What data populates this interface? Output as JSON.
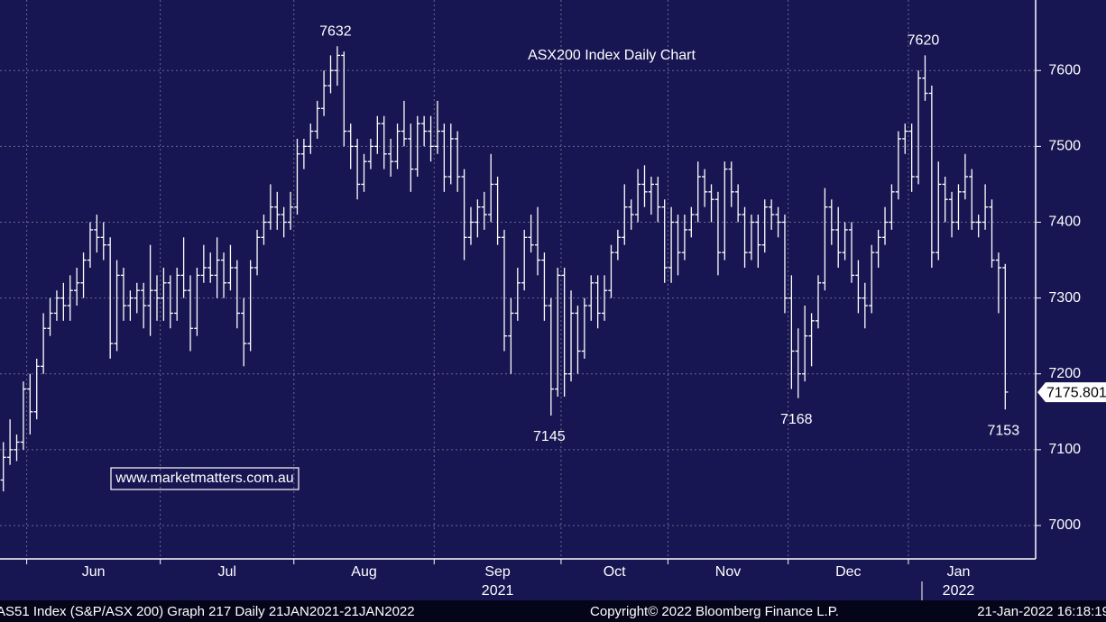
{
  "chart_data": {
    "type": "ohlc",
    "title": "ASX200 Index Daily Chart",
    "watermark": "www.marketmatters.com.au",
    "color": "#ffffff",
    "title_color": "#8fe07a",
    "grid": true,
    "ylim": [
      6956,
      7693
    ],
    "yticks": [
      7000,
      7100,
      7200,
      7300,
      7400,
      7500,
      7600
    ],
    "xlim": [
      0,
      151
    ],
    "xticks": [
      {
        "value": 4,
        "label": "Jun"
      },
      {
        "value": 24,
        "label": "Jul"
      },
      {
        "value": 44,
        "label": "Aug"
      },
      {
        "value": 65,
        "label": "Sep",
        "year": "2021"
      },
      {
        "value": 84,
        "label": "Oct"
      },
      {
        "value": 100,
        "label": "Nov"
      },
      {
        "value": 118,
        "label": "Dec"
      },
      {
        "value": 136,
        "label": "Jan",
        "year": "2022"
      }
    ],
    "last_price": 7175.801,
    "annotations": [
      {
        "label": 7632,
        "bar": 50
      },
      {
        "label": 7145,
        "bar": 82
      },
      {
        "label": 7168,
        "bar": 119
      },
      {
        "label": 7620,
        "bar": 138
      },
      {
        "label": 7153,
        "bar": 150
      }
    ],
    "footer": [
      "AS51 Index (S&P/ASX 200) Graph 217  Daily 21JAN2021-21JAN2022",
      "Copyright© 2022 Bloomberg Finance L.P.",
      "21-Jan-2022 16:18:19"
    ],
    "ohlc": [
      [
        7060,
        7110,
        7045,
        7090
      ],
      [
        7090,
        7140,
        7080,
        7100
      ],
      [
        7100,
        7120,
        7085,
        7110
      ],
      [
        7110,
        7190,
        7100,
        7180
      ],
      [
        7180,
        7200,
        7120,
        7150
      ],
      [
        7150,
        7220,
        7140,
        7210
      ],
      [
        7210,
        7280,
        7200,
        7260
      ],
      [
        7260,
        7300,
        7250,
        7280
      ],
      [
        7280,
        7310,
        7270,
        7300
      ],
      [
        7300,
        7320,
        7270,
        7290
      ],
      [
        7290,
        7330,
        7270,
        7310
      ],
      [
        7310,
        7340,
        7290,
        7320
      ],
      [
        7320,
        7360,
        7300,
        7350
      ],
      [
        7350,
        7400,
        7340,
        7390
      ],
      [
        7390,
        7410,
        7360,
        7380
      ],
      [
        7380,
        7400,
        7350,
        7370
      ],
      [
        7370,
        7380,
        7220,
        7240
      ],
      [
        7240,
        7350,
        7230,
        7330
      ],
      [
        7330,
        7340,
        7270,
        7290
      ],
      [
        7290,
        7310,
        7270,
        7300
      ],
      [
        7300,
        7320,
        7280,
        7310
      ],
      [
        7310,
        7320,
        7260,
        7290
      ],
      [
        7290,
        7370,
        7250,
        7310
      ],
      [
        7310,
        7330,
        7270,
        7300
      ],
      [
        7300,
        7340,
        7270,
        7320
      ],
      [
        7320,
        7330,
        7260,
        7280
      ],
      [
        7280,
        7340,
        7270,
        7330
      ],
      [
        7330,
        7380,
        7300,
        7310
      ],
      [
        7310,
        7330,
        7230,
        7260
      ],
      [
        7260,
        7340,
        7250,
        7330
      ],
      [
        7330,
        7370,
        7320,
        7340
      ],
      [
        7340,
        7360,
        7320,
        7330
      ],
      [
        7330,
        7380,
        7300,
        7350
      ],
      [
        7350,
        7360,
        7300,
        7320
      ],
      [
        7320,
        7370,
        7310,
        7340
      ],
      [
        7340,
        7350,
        7260,
        7280
      ],
      [
        7280,
        7300,
        7210,
        7240
      ],
      [
        7240,
        7350,
        7230,
        7340
      ],
      [
        7340,
        7390,
        7330,
        7380
      ],
      [
        7380,
        7410,
        7370,
        7400
      ],
      [
        7400,
        7450,
        7390,
        7420
      ],
      [
        7420,
        7440,
        7390,
        7410
      ],
      [
        7410,
        7420,
        7380,
        7400
      ],
      [
        7400,
        7440,
        7390,
        7420
      ],
      [
        7420,
        7510,
        7410,
        7490
      ],
      [
        7490,
        7510,
        7470,
        7500
      ],
      [
        7500,
        7530,
        7490,
        7520
      ],
      [
        7520,
        7560,
        7510,
        7550
      ],
      [
        7550,
        7600,
        7540,
        7580
      ],
      [
        7580,
        7620,
        7570,
        7600
      ],
      [
        7600,
        7632,
        7580,
        7620
      ],
      [
        7620,
        7625,
        7500,
        7520
      ],
      [
        7520,
        7530,
        7470,
        7500
      ],
      [
        7500,
        7510,
        7430,
        7450
      ],
      [
        7450,
        7490,
        7440,
        7480
      ],
      [
        7480,
        7510,
        7470,
        7500
      ],
      [
        7500,
        7540,
        7490,
        7530
      ],
      [
        7530,
        7540,
        7470,
        7490
      ],
      [
        7490,
        7510,
        7460,
        7480
      ],
      [
        7480,
        7530,
        7470,
        7520
      ],
      [
        7520,
        7560,
        7500,
        7510
      ],
      [
        7510,
        7530,
        7440,
        7470
      ],
      [
        7470,
        7540,
        7460,
        7530
      ],
      [
        7530,
        7540,
        7500,
        7520
      ],
      [
        7520,
        7540,
        7480,
        7500
      ],
      [
        7500,
        7560,
        7490,
        7520
      ],
      [
        7520,
        7530,
        7440,
        7460
      ],
      [
        7460,
        7530,
        7450,
        7510
      ],
      [
        7510,
        7520,
        7440,
        7460
      ],
      [
        7460,
        7470,
        7350,
        7380
      ],
      [
        7380,
        7420,
        7370,
        7400
      ],
      [
        7400,
        7430,
        7380,
        7420
      ],
      [
        7420,
        7440,
        7390,
        7410
      ],
      [
        7410,
        7490,
        7400,
        7450
      ],
      [
        7450,
        7460,
        7370,
        7380
      ],
      [
        7380,
        7390,
        7230,
        7250
      ],
      [
        7250,
        7300,
        7200,
        7280
      ],
      [
        7280,
        7340,
        7270,
        7320
      ],
      [
        7320,
        7390,
        7310,
        7380
      ],
      [
        7380,
        7410,
        7360,
        7370
      ],
      [
        7370,
        7420,
        7330,
        7350
      ],
      [
        7350,
        7360,
        7270,
        7290
      ],
      [
        7290,
        7300,
        7145,
        7180
      ],
      [
        7180,
        7340,
        7170,
        7330
      ],
      [
        7330,
        7340,
        7170,
        7200
      ],
      [
        7200,
        7310,
        7190,
        7280
      ],
      [
        7280,
        7290,
        7200,
        7230
      ],
      [
        7230,
        7300,
        7220,
        7290
      ],
      [
        7290,
        7330,
        7270,
        7320
      ],
      [
        7320,
        7330,
        7260,
        7280
      ],
      [
        7280,
        7330,
        7270,
        7310
      ],
      [
        7310,
        7370,
        7300,
        7360
      ],
      [
        7360,
        7390,
        7350,
        7380
      ],
      [
        7380,
        7450,
        7370,
        7420
      ],
      [
        7420,
        7430,
        7390,
        7410
      ],
      [
        7410,
        7470,
        7400,
        7450
      ],
      [
        7450,
        7475,
        7420,
        7440
      ],
      [
        7440,
        7460,
        7410,
        7450
      ],
      [
        7450,
        7460,
        7400,
        7420
      ],
      [
        7420,
        7430,
        7320,
        7340
      ],
      [
        7340,
        7420,
        7320,
        7400
      ],
      [
        7400,
        7410,
        7330,
        7360
      ],
      [
        7360,
        7410,
        7350,
        7390
      ],
      [
        7390,
        7420,
        7380,
        7410
      ],
      [
        7410,
        7480,
        7400,
        7460
      ],
      [
        7460,
        7470,
        7420,
        7440
      ],
      [
        7440,
        7450,
        7400,
        7430
      ],
      [
        7430,
        7440,
        7330,
        7360
      ],
      [
        7360,
        7480,
        7350,
        7470
      ],
      [
        7470,
        7480,
        7420,
        7440
      ],
      [
        7440,
        7450,
        7400,
        7410
      ],
      [
        7410,
        7420,
        7340,
        7360
      ],
      [
        7360,
        7410,
        7350,
        7400
      ],
      [
        7400,
        7410,
        7340,
        7370
      ],
      [
        7370,
        7430,
        7360,
        7420
      ],
      [
        7420,
        7430,
        7390,
        7410
      ],
      [
        7410,
        7420,
        7380,
        7400
      ],
      [
        7400,
        7410,
        7280,
        7300
      ],
      [
        7300,
        7330,
        7180,
        7230
      ],
      [
        7230,
        7260,
        7168,
        7200
      ],
      [
        7200,
        7290,
        7190,
        7250
      ],
      [
        7250,
        7280,
        7210,
        7270
      ],
      [
        7270,
        7330,
        7260,
        7320
      ],
      [
        7320,
        7445,
        7310,
        7420
      ],
      [
        7420,
        7430,
        7370,
        7390
      ],
      [
        7390,
        7420,
        7340,
        7360
      ],
      [
        7360,
        7400,
        7350,
        7390
      ],
      [
        7390,
        7400,
        7320,
        7330
      ],
      [
        7330,
        7350,
        7280,
        7300
      ],
      [
        7300,
        7320,
        7260,
        7290
      ],
      [
        7290,
        7370,
        7280,
        7360
      ],
      [
        7360,
        7390,
        7340,
        7380
      ],
      [
        7380,
        7420,
        7370,
        7400
      ],
      [
        7400,
        7450,
        7390,
        7440
      ],
      [
        7440,
        7520,
        7430,
        7510
      ],
      [
        7510,
        7530,
        7490,
        7520
      ],
      [
        7520,
        7530,
        7440,
        7460
      ],
      [
        7460,
        7600,
        7450,
        7590
      ],
      [
        7590,
        7620,
        7560,
        7570
      ],
      [
        7570,
        7580,
        7340,
        7360
      ],
      [
        7360,
        7480,
        7350,
        7450
      ],
      [
        7450,
        7460,
        7400,
        7430
      ],
      [
        7430,
        7440,
        7380,
        7400
      ],
      [
        7400,
        7450,
        7390,
        7440
      ],
      [
        7440,
        7490,
        7430,
        7460
      ],
      [
        7460,
        7470,
        7390,
        7400
      ],
      [
        7400,
        7410,
        7380,
        7400
      ],
      [
        7400,
        7450,
        7390,
        7420
      ],
      [
        7420,
        7430,
        7340,
        7350
      ],
      [
        7350,
        7360,
        7280,
        7340
      ],
      [
        7340,
        7345,
        7153,
        7176
      ]
    ]
  }
}
